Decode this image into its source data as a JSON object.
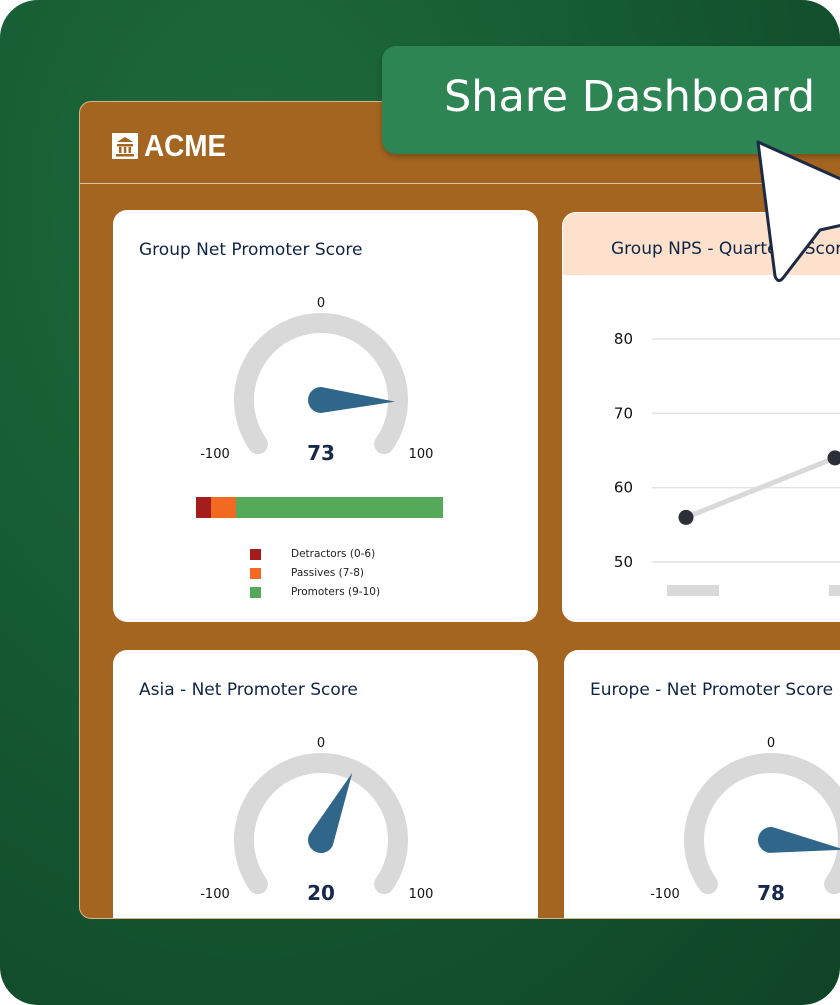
{
  "header": {
    "logo_text": "ACME"
  },
  "share_button": {
    "label": "Share Dashboard"
  },
  "colors": {
    "background": "#165a33",
    "panel": "#a46520",
    "share": "#2d8553",
    "needle": "#2f6689",
    "track": "#d9d9d9",
    "detractors": "#a31d1d",
    "passives": "#f26a21",
    "promoters": "#55aa5a"
  },
  "gauges": [
    {
      "title": "Group Net Promoter Score",
      "min_label": "-100",
      "max_label": "100",
      "top_label": "0",
      "value": 73,
      "value_label": "73"
    },
    {
      "title": "Asia - Net Promoter Score",
      "min_label": "-100",
      "max_label": "100",
      "top_label": "0",
      "value": 20,
      "value_label": "20"
    },
    {
      "title": "Europe - Net Promoter Score",
      "min_label": "-100",
      "max_label": "100",
      "top_label": "0",
      "value": 78,
      "value_label": "78"
    }
  ],
  "breakdown": {
    "segments": [
      {
        "label": "Detractors (0-6)",
        "fraction": 0.06
      },
      {
        "label": "Passives (7-8)",
        "fraction": 0.1
      },
      {
        "label": "Promoters (9-10)",
        "fraction": 0.84
      }
    ]
  },
  "chart_data": {
    "type": "line",
    "title": "Group NPS - Quarterly Score",
    "y_ticks": [
      "80",
      "70",
      "60",
      "50"
    ],
    "ylim": [
      50,
      80
    ],
    "values": [
      56,
      64
    ],
    "grid": true
  }
}
